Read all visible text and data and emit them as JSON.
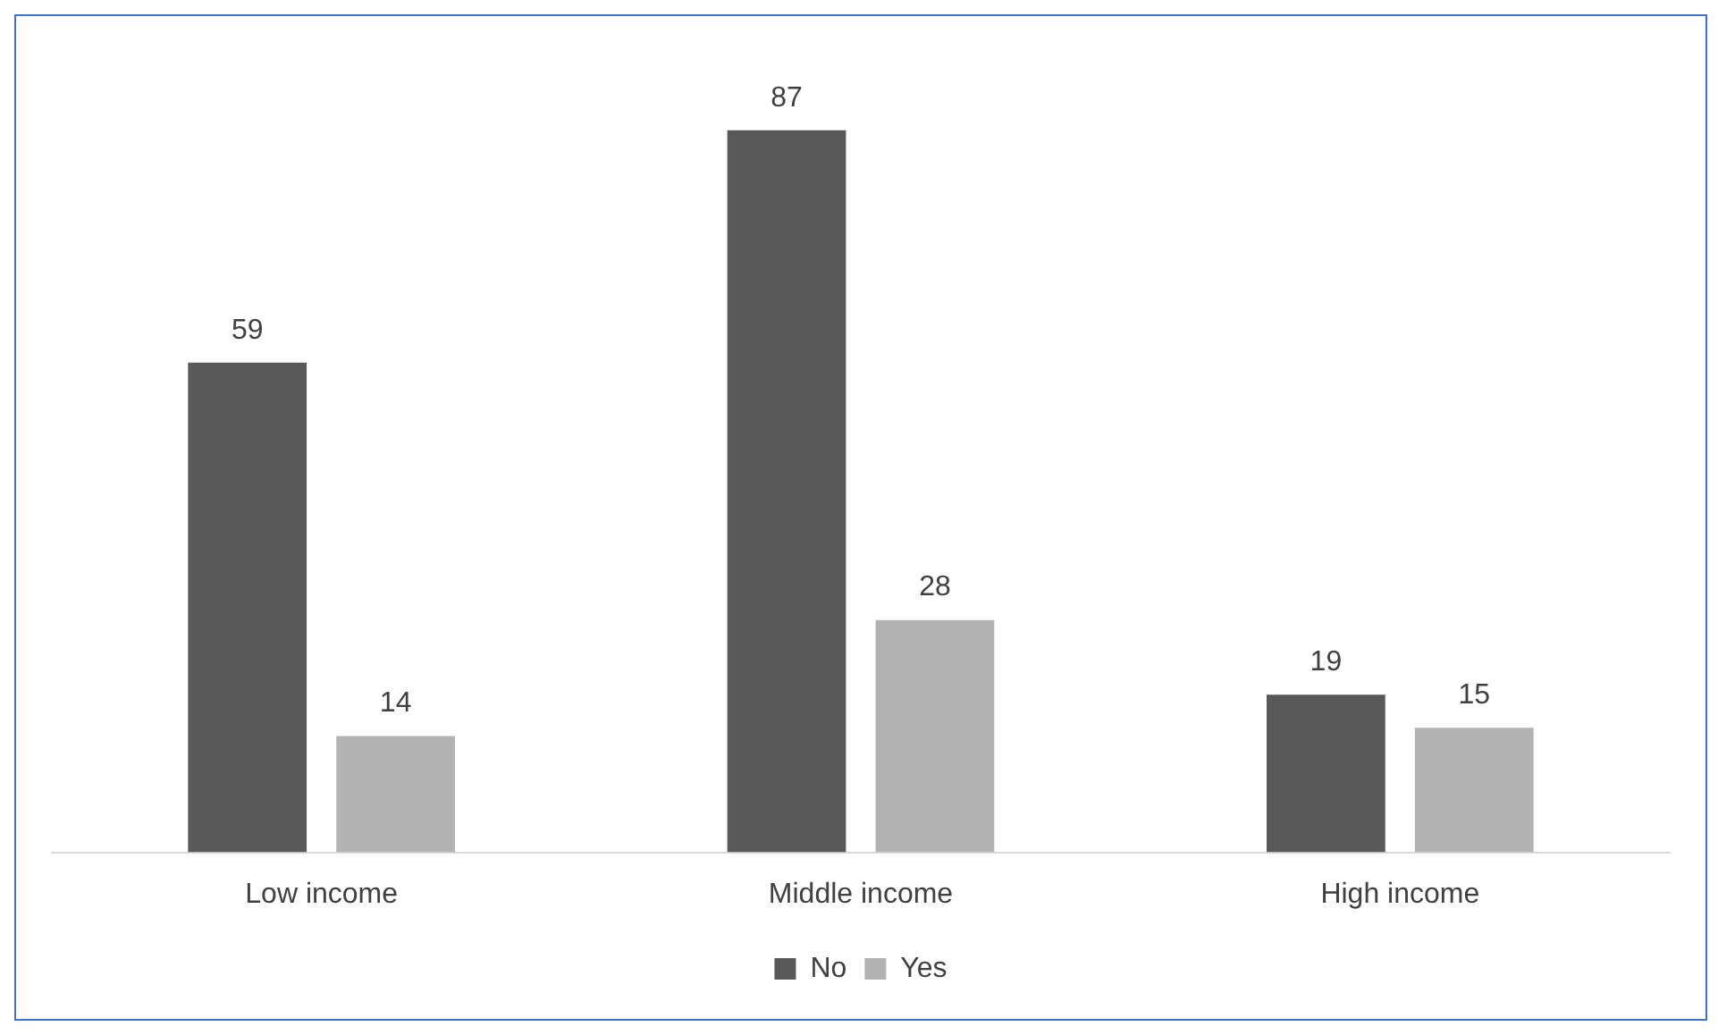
{
  "chart_data": {
    "type": "bar",
    "categories": [
      "Low income",
      "Middle income",
      "High income"
    ],
    "series": [
      {
        "name": "No",
        "color": "#595959",
        "values": [
          59,
          87,
          19
        ]
      },
      {
        "name": "Yes",
        "color": "#b3b3b3",
        "values": [
          14,
          28,
          15
        ]
      }
    ],
    "data_labels": true,
    "legend": "bottom",
    "grid": false
  }
}
